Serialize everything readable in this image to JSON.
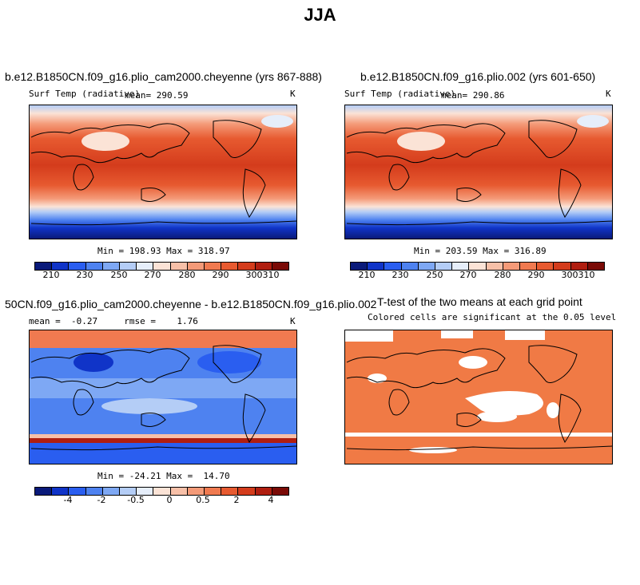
{
  "title": "JJA",
  "panels": {
    "top_left": {
      "case": "b.e12.B1850CN.f09_g16.plio_cam2000.cheyenne (yrs 867-888)",
      "variable": "Surf Temp (radiative)",
      "mean_label": "mean= 290.59",
      "units": "K",
      "minmax": "Min = 198.93 Max = 318.97"
    },
    "top_right": {
      "case": "b.e12.B1850CN.f09_g16.plio.002 (yrs 601-650)",
      "variable": "Surf Temp (radiative)",
      "mean_label": "mean= 290.86",
      "units": "K",
      "minmax": "Min = 203.59 Max = 316.89"
    },
    "bottom_left": {
      "case": "50CN.f09_g16.plio_cam2000.cheyenne - b.e12.B1850CN.f09_g16.plio.002",
      "stats": "mean =  -0.27     rmse =    1.76",
      "units": "K",
      "minmax": "Min = -24.21 Max =  14.70"
    },
    "bottom_right": {
      "title": "T-test of the two means at each grid point",
      "subtitle": "Colored cells are significant at the 0.05 level"
    }
  },
  "colorbars": {
    "temp": {
      "colors": [
        "#0a1a7a",
        "#1034c8",
        "#2a5ef0",
        "#4e82f0",
        "#7ea8f4",
        "#b4cdf6",
        "#e6eefa",
        "#fbe3d6",
        "#f7c0a8",
        "#f49a78",
        "#f07a50",
        "#e75a30",
        "#d43c1c",
        "#b01e10",
        "#7a0a06"
      ],
      "labels": [
        "210",
        "230",
        "250",
        "270",
        "280",
        "290",
        "300",
        "310"
      ]
    },
    "diff": {
      "colors": [
        "#0a1a7a",
        "#1034c8",
        "#2a5ef0",
        "#4e82f0",
        "#7ea8f4",
        "#b4cdf6",
        "#e6eefa",
        "#fbe3d6",
        "#f7c0a8",
        "#f49a78",
        "#f07a50",
        "#e75a30",
        "#d43c1c",
        "#b01e10",
        "#7a0a06"
      ],
      "labels": [
        "-4",
        "-2",
        "-0.5",
        "0",
        "0.5",
        "2",
        "4"
      ]
    }
  },
  "significance_color": "#f07a45"
}
